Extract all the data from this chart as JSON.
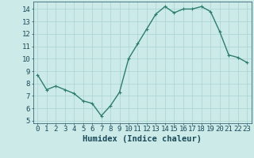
{
  "x": [
    0,
    1,
    2,
    3,
    4,
    5,
    6,
    7,
    8,
    9,
    10,
    11,
    12,
    13,
    14,
    15,
    16,
    17,
    18,
    19,
    20,
    21,
    22,
    23
  ],
  "y": [
    8.7,
    7.5,
    7.8,
    7.5,
    7.2,
    6.6,
    6.4,
    5.4,
    6.2,
    7.3,
    10.0,
    11.2,
    12.4,
    13.6,
    14.2,
    13.7,
    14.0,
    14.0,
    14.2,
    13.8,
    12.2,
    10.3,
    10.1,
    9.7
  ],
  "line_color": "#2e7d6e",
  "marker_color": "#2e7d6e",
  "bg_color": "#cceae8",
  "grid_color": "#aad4d0",
  "xlabel": "Humidex (Indice chaleur)",
  "xlim": [
    -0.5,
    23.5
  ],
  "ylim": [
    4.8,
    14.6
  ],
  "yticks": [
    5,
    6,
    7,
    8,
    9,
    10,
    11,
    12,
    13,
    14
  ],
  "xticks": [
    0,
    1,
    2,
    3,
    4,
    5,
    6,
    7,
    8,
    9,
    10,
    11,
    12,
    13,
    14,
    15,
    16,
    17,
    18,
    19,
    20,
    21,
    22,
    23
  ],
  "font_color": "#1a4a5a",
  "xlabel_fontsize": 7.5,
  "tick_fontsize": 6.5,
  "linewidth": 1.0,
  "markersize": 2.5
}
